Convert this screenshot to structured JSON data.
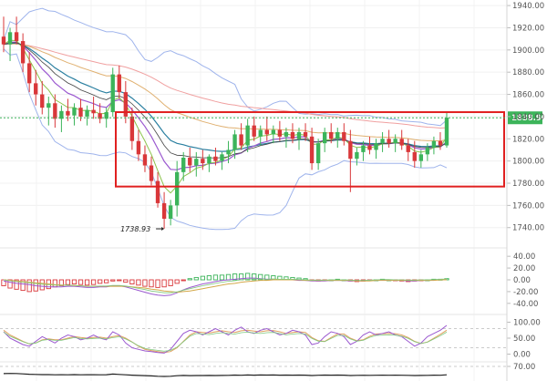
{
  "chart_data": {
    "type": "candlestick",
    "title": "",
    "price_axis": {
      "ticks": [
        "1940.00",
        "1920.00",
        "1900.00",
        "1880.00",
        "1860.00",
        "1840.00",
        "1820.00",
        "1800.00",
        "1780.00",
        "1760.00",
        "1740.00"
      ],
      "range": [
        1725,
        1945
      ]
    },
    "last_price_label": "1838.90",
    "last_price": 1838.9,
    "low_annotation": "1738.93",
    "low_value": 1738.93,
    "highlight_range": [
      1777,
      1844
    ],
    "candles": [
      [
        1912,
        1930,
        1898,
        1905
      ],
      [
        1905,
        1920,
        1890,
        1916
      ],
      [
        1916,
        1930,
        1905,
        1908
      ],
      [
        1908,
        1915,
        1880,
        1888
      ],
      [
        1888,
        1898,
        1862,
        1870
      ],
      [
        1870,
        1882,
        1850,
        1860
      ],
      [
        1860,
        1872,
        1842,
        1848
      ],
      [
        1848,
        1858,
        1832,
        1852
      ],
      [
        1852,
        1860,
        1830,
        1838
      ],
      [
        1838,
        1850,
        1826,
        1845
      ],
      [
        1845,
        1856,
        1836,
        1841
      ],
      [
        1841,
        1852,
        1832,
        1848
      ],
      [
        1848,
        1856,
        1836,
        1840
      ],
      [
        1840,
        1850,
        1832,
        1846
      ],
      [
        1846,
        1858,
        1838,
        1843
      ],
      [
        1843,
        1852,
        1834,
        1838
      ],
      [
        1838,
        1848,
        1830,
        1844
      ],
      [
        1844,
        1884,
        1840,
        1878
      ],
      [
        1878,
        1886,
        1856,
        1862
      ],
      [
        1862,
        1872,
        1834,
        1840
      ],
      [
        1840,
        1848,
        1810,
        1818
      ],
      [
        1818,
        1828,
        1800,
        1806
      ],
      [
        1806,
        1814,
        1790,
        1796
      ],
      [
        1796,
        1804,
        1778,
        1782
      ],
      [
        1782,
        1790,
        1758,
        1762
      ],
      [
        1762,
        1772,
        1739,
        1748
      ],
      [
        1748,
        1765,
        1742,
        1760
      ],
      [
        1760,
        1800,
        1750,
        1790
      ],
      [
        1790,
        1808,
        1782,
        1803
      ],
      [
        1803,
        1812,
        1790,
        1796
      ],
      [
        1796,
        1808,
        1786,
        1802
      ],
      [
        1802,
        1810,
        1792,
        1798
      ],
      [
        1798,
        1806,
        1790,
        1804
      ],
      [
        1804,
        1812,
        1796,
        1800
      ],
      [
        1800,
        1808,
        1792,
        1806
      ],
      [
        1806,
        1818,
        1798,
        1810
      ],
      [
        1810,
        1828,
        1802,
        1824
      ],
      [
        1824,
        1834,
        1810,
        1814
      ],
      [
        1814,
        1838,
        1808,
        1832
      ],
      [
        1832,
        1840,
        1818,
        1822
      ],
      [
        1822,
        1832,
        1814,
        1828
      ],
      [
        1828,
        1840,
        1818,
        1824
      ],
      [
        1824,
        1832,
        1816,
        1828
      ],
      [
        1828,
        1836,
        1818,
        1822
      ],
      [
        1822,
        1830,
        1812,
        1826
      ],
      [
        1826,
        1834,
        1816,
        1820
      ],
      [
        1820,
        1830,
        1810,
        1826
      ],
      [
        1826,
        1834,
        1818,
        1822
      ],
      [
        1822,
        1830,
        1792,
        1798
      ],
      [
        1798,
        1820,
        1792,
        1816
      ],
      [
        1816,
        1830,
        1808,
        1826
      ],
      [
        1826,
        1834,
        1816,
        1820
      ],
      [
        1820,
        1830,
        1812,
        1826
      ],
      [
        1826,
        1834,
        1814,
        1818
      ],
      [
        1818,
        1828,
        1772,
        1802
      ],
      [
        1802,
        1812,
        1796,
        1808
      ],
      [
        1808,
        1818,
        1800,
        1814
      ],
      [
        1814,
        1822,
        1806,
        1810
      ],
      [
        1810,
        1820,
        1802,
        1816
      ],
      [
        1816,
        1826,
        1808,
        1820
      ],
      [
        1820,
        1828,
        1812,
        1816
      ],
      [
        1816,
        1824,
        1808,
        1820
      ],
      [
        1820,
        1828,
        1810,
        1814
      ],
      [
        1814,
        1820,
        1800,
        1808
      ],
      [
        1808,
        1818,
        1794,
        1800
      ],
      [
        1800,
        1810,
        1794,
        1806
      ],
      [
        1806,
        1816,
        1800,
        1812
      ],
      [
        1812,
        1822,
        1806,
        1818
      ],
      [
        1818,
        1826,
        1810,
        1814
      ],
      [
        1814,
        1844,
        1812,
        1839
      ]
    ],
    "macd_axis": {
      "ticks": [
        "40.00",
        "20.00",
        "0.00",
        "-20.00",
        "-40.00"
      ],
      "range": [
        -48,
        48
      ]
    },
    "macd_hist": [
      -10,
      -14,
      -16,
      -18,
      -20,
      -19,
      -17,
      -15,
      -12,
      -10,
      -8,
      -7,
      -8,
      -9,
      -8,
      -6,
      -5,
      -2,
      -1,
      -4,
      -7,
      -9,
      -11,
      -12,
      -13,
      -12,
      -10,
      -6,
      -1,
      2,
      4,
      6,
      7,
      8,
      8,
      9,
      10,
      10,
      11,
      10,
      9,
      8,
      7,
      6,
      5,
      4,
      3,
      2,
      -1,
      -2,
      -1,
      0,
      1,
      0,
      -2,
      -3,
      -2,
      -1,
      0,
      1,
      0,
      -1,
      -2,
      -3,
      -2,
      -1,
      0,
      1,
      1,
      2
    ],
    "macd_line": [
      -2,
      -4,
      -6,
      -7,
      -8,
      -10,
      -11,
      -12,
      -12,
      -12,
      -11,
      -11,
      -12,
      -13,
      -13,
      -12,
      -12,
      -10,
      -10,
      -12,
      -15,
      -18,
      -21,
      -24,
      -26,
      -27,
      -26,
      -22,
      -17,
      -13,
      -10,
      -7,
      -5,
      -3,
      -1,
      0,
      1,
      2,
      3,
      3,
      2,
      1,
      1,
      0,
      0,
      0,
      -1,
      -1,
      -2,
      -2,
      -2,
      -1,
      -1,
      -1,
      -2,
      -2,
      -2,
      -1,
      -1,
      0,
      0,
      -1,
      -1,
      -2,
      -2,
      -1,
      -1,
      0,
      0,
      1
    ],
    "signal_line": [
      0,
      -1,
      -2,
      -3,
      -4,
      -5,
      -6,
      -7,
      -8,
      -9,
      -9,
      -10,
      -10,
      -11,
      -11,
      -11,
      -11,
      -11,
      -11,
      -11,
      -12,
      -13,
      -14,
      -16,
      -17,
      -19,
      -20,
      -21,
      -20,
      -19,
      -17,
      -15,
      -13,
      -11,
      -9,
      -7,
      -6,
      -4,
      -3,
      -2,
      -1,
      -1,
      0,
      0,
      0,
      0,
      0,
      -1,
      -1,
      -1,
      -1,
      -1,
      -1,
      -1,
      -1,
      -2,
      -2,
      -2,
      -1,
      -1,
      -1,
      -1,
      -1,
      -1,
      -1,
      -1,
      -1,
      -1,
      0,
      0
    ],
    "stoch_axis": {
      "ticks": [
        "100.00",
        "50.00",
        "0.00"
      ],
      "range": [
        -10,
        110
      ]
    },
    "stoch_k": [
      70,
      50,
      40,
      30,
      25,
      40,
      55,
      45,
      35,
      50,
      60,
      55,
      45,
      50,
      60,
      50,
      45,
      70,
      60,
      35,
      20,
      15,
      10,
      8,
      5,
      3,
      15,
      40,
      65,
      75,
      70,
      60,
      70,
      80,
      70,
      60,
      75,
      85,
      70,
      65,
      75,
      80,
      70,
      60,
      65,
      75,
      70,
      60,
      30,
      35,
      55,
      70,
      65,
      55,
      30,
      40,
      60,
      70,
      60,
      65,
      70,
      60,
      55,
      40,
      25,
      35,
      55,
      65,
      75,
      90
    ],
    "stoch_d": [
      75,
      60,
      50,
      40,
      32,
      35,
      45,
      48,
      45,
      45,
      50,
      55,
      52,
      50,
      52,
      53,
      50,
      55,
      58,
      50,
      38,
      25,
      15,
      11,
      8,
      5,
      8,
      20,
      40,
      60,
      70,
      68,
      66,
      70,
      73,
      70,
      68,
      73,
      75,
      72,
      70,
      73,
      74,
      70,
      65,
      68,
      70,
      68,
      52,
      42,
      40,
      52,
      63,
      63,
      50,
      42,
      45,
      56,
      63,
      64,
      65,
      64,
      60,
      52,
      40,
      33,
      38,
      50,
      62,
      75
    ],
    "rsi_axis": {
      "ticks": [
        "70.00"
      ]
    }
  }
}
